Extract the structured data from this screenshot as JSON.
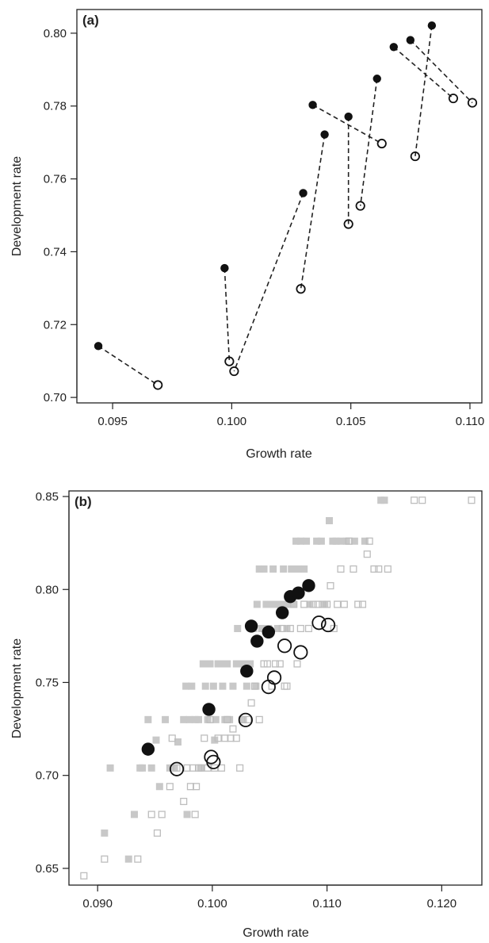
{
  "chart_data": [
    {
      "type": "scatter",
      "panel_label": "(a)",
      "xlabel": "Growth rate",
      "ylabel": "Development rate",
      "xlim": [
        0.0935,
        0.1105
      ],
      "ylim": [
        0.6985,
        0.8065
      ],
      "xticks": [
        0.095,
        0.1,
        0.105,
        0.11
      ],
      "xtick_labels": [
        "0.095",
        "0.100",
        "0.105",
        "0.110"
      ],
      "yticks": [
        0.7,
        0.72,
        0.74,
        0.76,
        0.78,
        0.8
      ],
      "ytick_labels": [
        "0.70",
        "0.72",
        "0.74",
        "0.76",
        "0.78",
        "0.80"
      ],
      "grid": false,
      "legend": "none",
      "series": [
        {
          "marker": "filled circle",
          "color": "#111111",
          "points": [
            [
              0.0944,
              0.7141
            ],
            [
              0.0997,
              0.7355
            ],
            [
              0.103,
              0.7561
            ],
            [
              0.1034,
              0.7803
            ],
            [
              0.1039,
              0.7722
            ],
            [
              0.1049,
              0.7771
            ],
            [
              0.1061,
              0.7875
            ],
            [
              0.1068,
              0.7962
            ],
            [
              0.1075,
              0.7981
            ],
            [
              0.1084,
              0.8021
            ]
          ]
        },
        {
          "marker": "open circle",
          "color": "#111111",
          "points": [
            [
              0.0969,
              0.7034
            ],
            [
              0.0999,
              0.7099
            ],
            [
              0.1001,
              0.7072
            ],
            [
              0.1029,
              0.7298
            ],
            [
              0.1049,
              0.7476
            ],
            [
              0.1054,
              0.7526
            ],
            [
              0.1063,
              0.7697
            ],
            [
              0.1077,
              0.7662
            ],
            [
              0.1093,
              0.7821
            ],
            [
              0.1101,
              0.7809
            ]
          ]
        }
      ],
      "pairs": [
        [
          [
            0.0944,
            0.7141
          ],
          [
            0.0969,
            0.7034
          ]
        ],
        [
          [
            0.0997,
            0.7355
          ],
          [
            0.0999,
            0.7099
          ]
        ],
        [
          [
            0.103,
            0.7561
          ],
          [
            0.1001,
            0.7072
          ]
        ],
        [
          [
            0.1034,
            0.7803
          ],
          [
            0.1063,
            0.7697
          ]
        ],
        [
          [
            0.1039,
            0.7722
          ],
          [
            0.1029,
            0.7298
          ]
        ],
        [
          [
            0.1049,
            0.7771
          ],
          [
            0.1049,
            0.7476
          ]
        ],
        [
          [
            0.1061,
            0.7875
          ],
          [
            0.1054,
            0.7526
          ]
        ],
        [
          [
            0.1068,
            0.7962
          ],
          [
            0.1093,
            0.7821
          ]
        ],
        [
          [
            0.1075,
            0.7981
          ],
          [
            0.1101,
            0.7809
          ]
        ],
        [
          [
            0.1084,
            0.8021
          ],
          [
            0.1077,
            0.7662
          ]
        ]
      ]
    },
    {
      "type": "scatter",
      "panel_label": "(b)",
      "xlabel": "Growth rate",
      "ylabel": "Development rate",
      "xlim": [
        0.0875,
        0.1235
      ],
      "ylim": [
        0.641,
        0.853
      ],
      "xticks": [
        0.09,
        0.1,
        0.11,
        0.12
      ],
      "xtick_labels": [
        "0.090",
        "0.100",
        "0.110",
        "0.120"
      ],
      "yticks": [
        0.65,
        0.7,
        0.75,
        0.8,
        0.85
      ],
      "ytick_labels": [
        "0.65",
        "0.70",
        "0.75",
        "0.80",
        "0.85"
      ],
      "grid": false,
      "legend": "none",
      "series": [
        {
          "marker": "filled square",
          "color": "#c8c8c8",
          "points": [
            [
              0.0906,
              0.669
            ],
            [
              0.0911,
              0.704
            ],
            [
              0.0927,
              0.655
            ],
            [
              0.0932,
              0.679
            ],
            [
              0.0937,
              0.704
            ],
            [
              0.0939,
              0.704
            ],
            [
              0.0944,
              0.73
            ],
            [
              0.0947,
              0.704
            ],
            [
              0.0951,
              0.719
            ],
            [
              0.0954,
              0.694
            ],
            [
              0.0959,
              0.73
            ],
            [
              0.0963,
              0.704
            ],
            [
              0.0967,
              0.704
            ],
            [
              0.097,
              0.718
            ],
            [
              0.0975,
              0.73
            ],
            [
              0.0977,
              0.748
            ],
            [
              0.0978,
              0.679
            ],
            [
              0.098,
              0.73
            ],
            [
              0.0982,
              0.748
            ],
            [
              0.0985,
              0.73
            ],
            [
              0.0988,
              0.73
            ],
            [
              0.099,
              0.704
            ],
            [
              0.0992,
              0.76
            ],
            [
              0.0994,
              0.748
            ],
            [
              0.0996,
              0.73
            ],
            [
              0.0998,
              0.76
            ],
            [
              0.1001,
              0.748
            ],
            [
              0.1002,
              0.719
            ],
            [
              0.1003,
              0.73
            ],
            [
              0.1005,
              0.76
            ],
            [
              0.1007,
              0.76
            ],
            [
              0.1009,
              0.748
            ],
            [
              0.1011,
              0.73
            ],
            [
              0.1013,
              0.76
            ],
            [
              0.1015,
              0.73
            ],
            [
              0.1018,
              0.748
            ],
            [
              0.1021,
              0.76
            ],
            [
              0.1022,
              0.779
            ],
            [
              0.1024,
              0.76
            ],
            [
              0.1026,
              0.73
            ],
            [
              0.1028,
              0.76
            ],
            [
              0.103,
              0.748
            ],
            [
              0.1033,
              0.76
            ],
            [
              0.1036,
              0.779
            ],
            [
              0.1038,
              0.748
            ],
            [
              0.1039,
              0.792
            ],
            [
              0.1041,
              0.811
            ],
            [
              0.1043,
              0.779
            ],
            [
              0.1045,
              0.811
            ],
            [
              0.1047,
              0.792
            ],
            [
              0.1049,
              0.779
            ],
            [
              0.1051,
              0.792
            ],
            [
              0.1053,
              0.811
            ],
            [
              0.1055,
              0.792
            ],
            [
              0.1057,
              0.779
            ],
            [
              0.106,
              0.792
            ],
            [
              0.1062,
              0.811
            ],
            [
              0.1063,
              0.792
            ],
            [
              0.1065,
              0.779
            ],
            [
              0.1067,
              0.792
            ],
            [
              0.1069,
              0.811
            ],
            [
              0.1071,
              0.792
            ],
            [
              0.1073,
              0.826
            ],
            [
              0.1075,
              0.811
            ],
            [
              0.1077,
              0.826
            ],
            [
              0.108,
              0.811
            ],
            [
              0.1082,
              0.826
            ],
            [
              0.1085,
              0.792
            ],
            [
              0.1091,
              0.826
            ],
            [
              0.1095,
              0.826
            ],
            [
              0.1098,
              0.792
            ],
            [
              0.1102,
              0.837
            ],
            [
              0.1105,
              0.826
            ],
            [
              0.1108,
              0.826
            ],
            [
              0.1112,
              0.826
            ],
            [
              0.1117,
              0.826
            ],
            [
              0.1124,
              0.826
            ],
            [
              0.1133,
              0.826
            ],
            [
              0.1147,
              0.848
            ],
            [
              0.115,
              0.848
            ]
          ]
        },
        {
          "marker": "open square",
          "color": "#bdbdbd",
          "points": [
            [
              0.0888,
              0.646
            ],
            [
              0.0906,
              0.655
            ],
            [
              0.0935,
              0.655
            ],
            [
              0.0947,
              0.679
            ],
            [
              0.0952,
              0.669
            ],
            [
              0.0956,
              0.679
            ],
            [
              0.0963,
              0.694
            ],
            [
              0.0965,
              0.72
            ],
            [
              0.0969,
              0.704
            ],
            [
              0.0975,
              0.686
            ],
            [
              0.0978,
              0.704
            ],
            [
              0.0981,
              0.694
            ],
            [
              0.0983,
              0.704
            ],
            [
              0.0985,
              0.679
            ],
            [
              0.0986,
              0.694
            ],
            [
              0.0988,
              0.704
            ],
            [
              0.099,
              0.704
            ],
            [
              0.0993,
              0.72
            ],
            [
              0.0996,
              0.704
            ],
            [
              0.0998,
              0.73
            ],
            [
              0.1002,
              0.704
            ],
            [
              0.1005,
              0.72
            ],
            [
              0.1008,
              0.704
            ],
            [
              0.1011,
              0.72
            ],
            [
              0.1013,
              0.73
            ],
            [
              0.1016,
              0.72
            ],
            [
              0.1018,
              0.725
            ],
            [
              0.1021,
              0.72
            ],
            [
              0.1024,
              0.704
            ],
            [
              0.1027,
              0.73
            ],
            [
              0.1031,
              0.73
            ],
            [
              0.1034,
              0.739
            ],
            [
              0.1037,
              0.748
            ],
            [
              0.1041,
              0.73
            ],
            [
              0.1045,
              0.76
            ],
            [
              0.1048,
              0.76
            ],
            [
              0.1052,
              0.748
            ],
            [
              0.1055,
              0.76
            ],
            [
              0.1059,
              0.76
            ],
            [
              0.1061,
              0.779
            ],
            [
              0.1063,
              0.748
            ],
            [
              0.1065,
              0.748
            ],
            [
              0.1068,
              0.779
            ],
            [
              0.1071,
              0.792
            ],
            [
              0.1074,
              0.76
            ],
            [
              0.1077,
              0.779
            ],
            [
              0.108,
              0.792
            ],
            [
              0.1084,
              0.779
            ],
            [
              0.1088,
              0.792
            ],
            [
              0.1092,
              0.792
            ],
            [
              0.1096,
              0.792
            ],
            [
              0.11,
              0.792
            ],
            [
              0.1103,
              0.802
            ],
            [
              0.1106,
              0.779
            ],
            [
              0.1109,
              0.792
            ],
            [
              0.1112,
              0.811
            ],
            [
              0.1115,
              0.792
            ],
            [
              0.1119,
              0.826
            ],
            [
              0.1123,
              0.811
            ],
            [
              0.1127,
              0.792
            ],
            [
              0.1131,
              0.792
            ],
            [
              0.1135,
              0.819
            ],
            [
              0.1137,
              0.826
            ],
            [
              0.1141,
              0.811
            ],
            [
              0.1145,
              0.811
            ],
            [
              0.1153,
              0.811
            ],
            [
              0.1176,
              0.848
            ],
            [
              0.1183,
              0.848
            ],
            [
              0.1226,
              0.848
            ]
          ]
        },
        {
          "marker": "filled circle",
          "color": "#111111",
          "points": [
            [
              0.0944,
              0.7141
            ],
            [
              0.0997,
              0.7355
            ],
            [
              0.103,
              0.7561
            ],
            [
              0.1034,
              0.7803
            ],
            [
              0.1039,
              0.7722
            ],
            [
              0.1049,
              0.7771
            ],
            [
              0.1061,
              0.7875
            ],
            [
              0.1068,
              0.7962
            ],
            [
              0.1075,
              0.7981
            ],
            [
              0.1084,
              0.8021
            ]
          ]
        },
        {
          "marker": "open circle",
          "color": "#111111",
          "points": [
            [
              0.0969,
              0.7034
            ],
            [
              0.0999,
              0.7099
            ],
            [
              0.1001,
              0.7072
            ],
            [
              0.1029,
              0.7298
            ],
            [
              0.1049,
              0.7476
            ],
            [
              0.1054,
              0.7526
            ],
            [
              0.1063,
              0.7697
            ],
            [
              0.1077,
              0.7662
            ],
            [
              0.1093,
              0.7821
            ],
            [
              0.1101,
              0.7809
            ]
          ]
        }
      ]
    }
  ]
}
